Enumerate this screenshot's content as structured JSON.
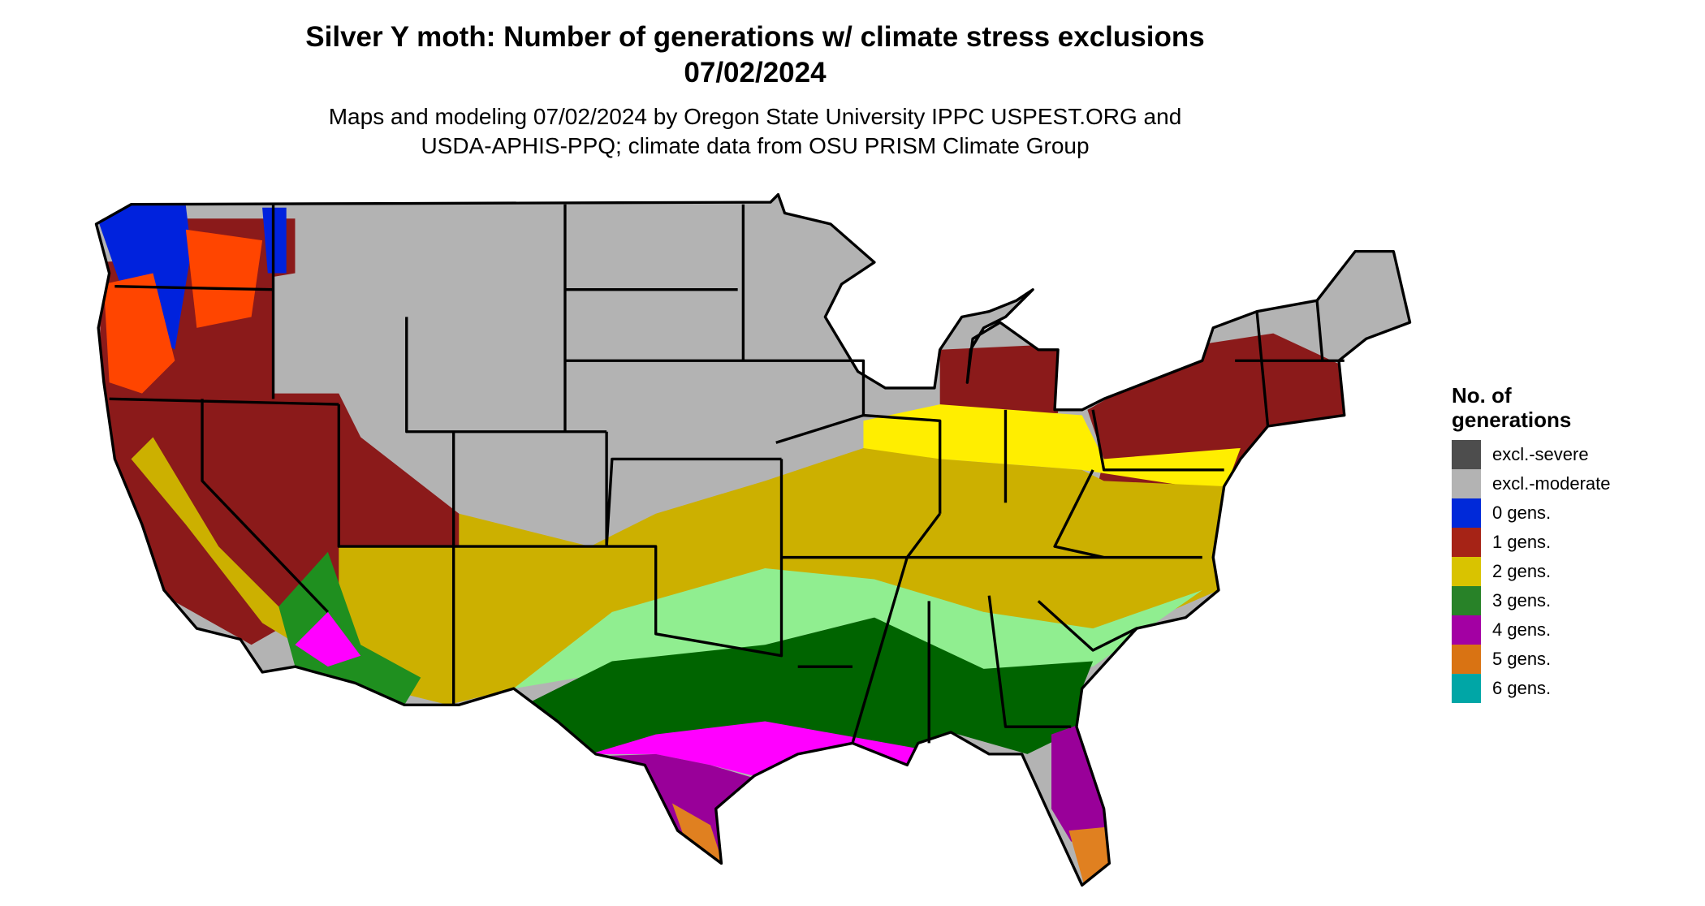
{
  "chart_data": {
    "type": "heatmap",
    "title": "Silver Y moth: Number of generations w/ climate stress exclusions",
    "date": "07/02/2024",
    "subtitle_line1": "Maps and modeling 07/02/2024 by Oregon State University IPPC USPEST.ORG and",
    "subtitle_line2": "USDA-APHIS-PPQ; climate data from OSU PRISM Climate Group",
    "region": "Contiguous United States",
    "legend": {
      "title_line1": "No. of",
      "title_line2": "generations",
      "placement": "right",
      "items": [
        {
          "label": "excl.-severe",
          "color": "#4d4d4d"
        },
        {
          "label": "excl.-moderate",
          "color": "#b3b3b3"
        },
        {
          "label": "0 gens.",
          "color": "#0029d9"
        },
        {
          "label": "1 gens.",
          "color": "#a62316"
        },
        {
          "label": "2 gens.",
          "color": "#d9c300"
        },
        {
          "label": "3 gens.",
          "color": "#288228"
        },
        {
          "label": "4 gens.",
          "color": "#a300a3"
        },
        {
          "label": "5 gens.",
          "color": "#d97313"
        },
        {
          "label": "6 gens.",
          "color": "#00a6a6"
        }
      ]
    }
  }
}
